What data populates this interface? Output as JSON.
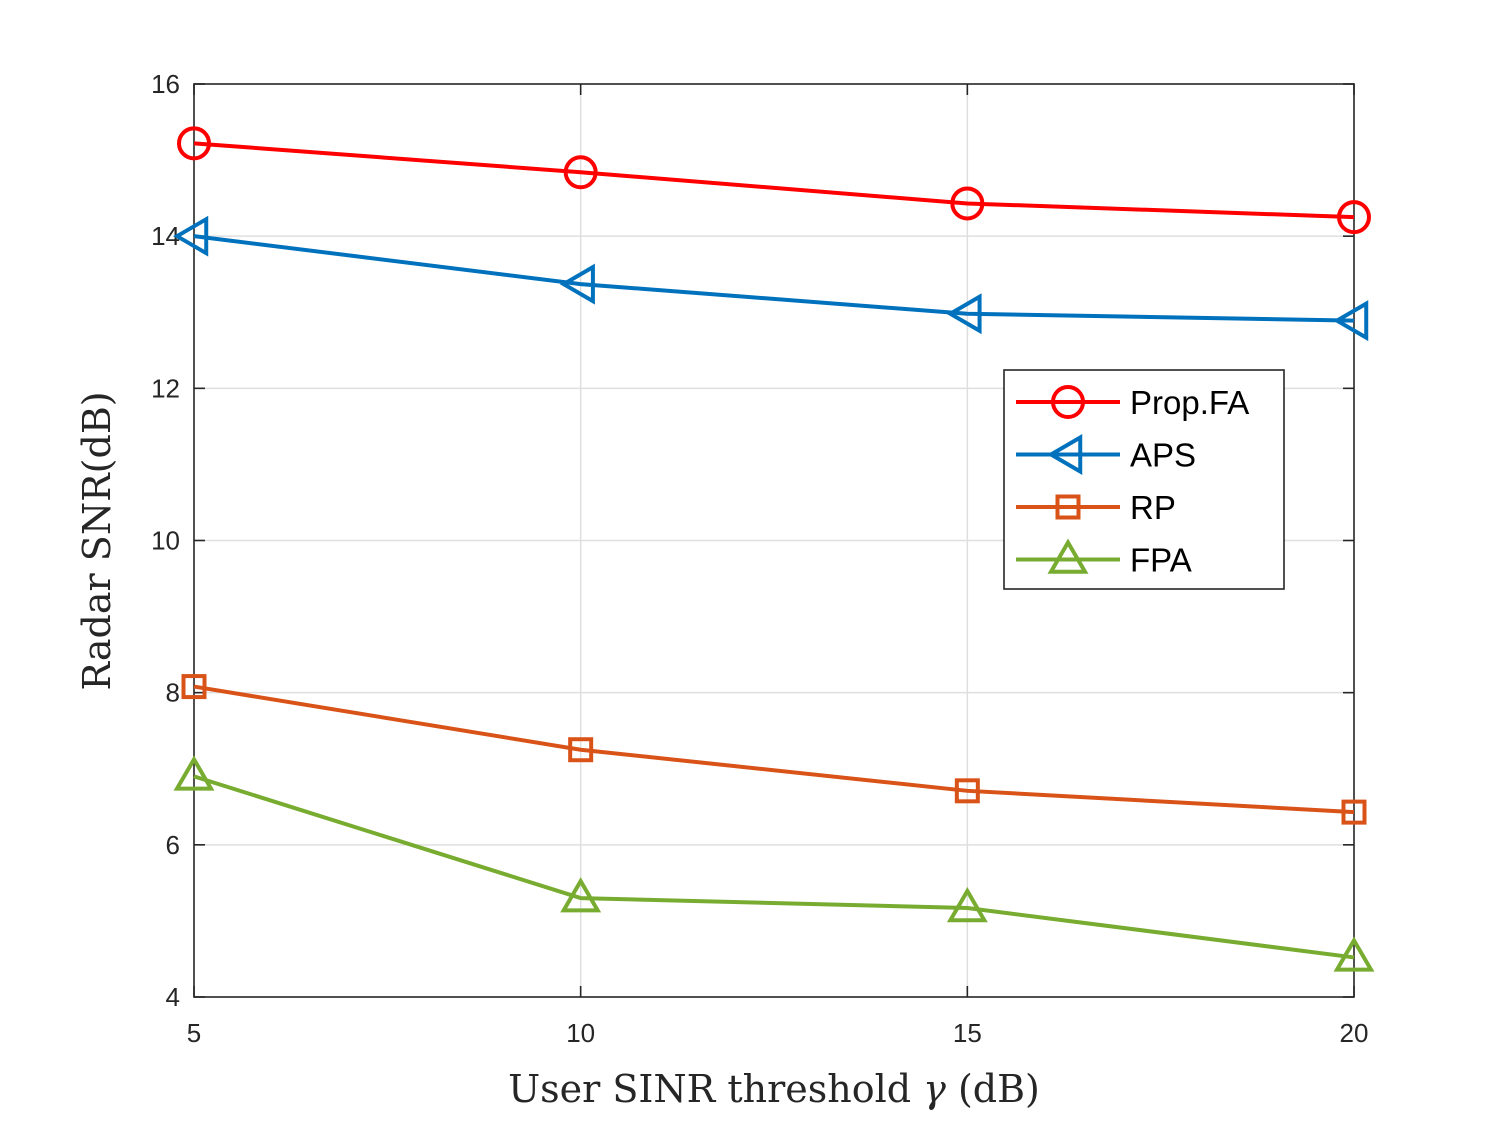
{
  "chart_data": {
    "type": "line",
    "title": "",
    "xlabel_text": "User SINR threshold",
    "xlabel_symbol": "γ",
    "xlabel_unit": "(dB)",
    "ylabel": "Radar SNR(dB)",
    "xlim": [
      5,
      20
    ],
    "ylim": [
      4,
      16
    ],
    "xticks": [
      5,
      10,
      15,
      20
    ],
    "yticks": [
      4,
      6,
      8,
      10,
      12,
      14,
      16
    ],
    "xtick_labels": [
      "5",
      "10",
      "15",
      "20"
    ],
    "ytick_labels": [
      "4",
      "6",
      "8",
      "10",
      "12",
      "14",
      "16"
    ],
    "grid": true,
    "legend_position": "upper-right",
    "x": [
      5,
      10,
      15,
      20
    ],
    "series": [
      {
        "name": "Prop.FA",
        "marker": "circle",
        "color": "#ff0000",
        "values": [
          15.22,
          14.84,
          14.43,
          14.25
        ]
      },
      {
        "name": "APS",
        "marker": "triangle-left",
        "color": "#0072bd",
        "values": [
          14.0,
          13.37,
          12.98,
          12.89
        ]
      },
      {
        "name": "RP",
        "marker": "square",
        "color": "#d95319",
        "values": [
          8.08,
          7.25,
          6.71,
          6.43
        ]
      },
      {
        "name": "FPA",
        "marker": "triangle-up",
        "color": "#77ac30",
        "values": [
          6.9,
          5.3,
          5.17,
          4.52
        ]
      }
    ]
  }
}
